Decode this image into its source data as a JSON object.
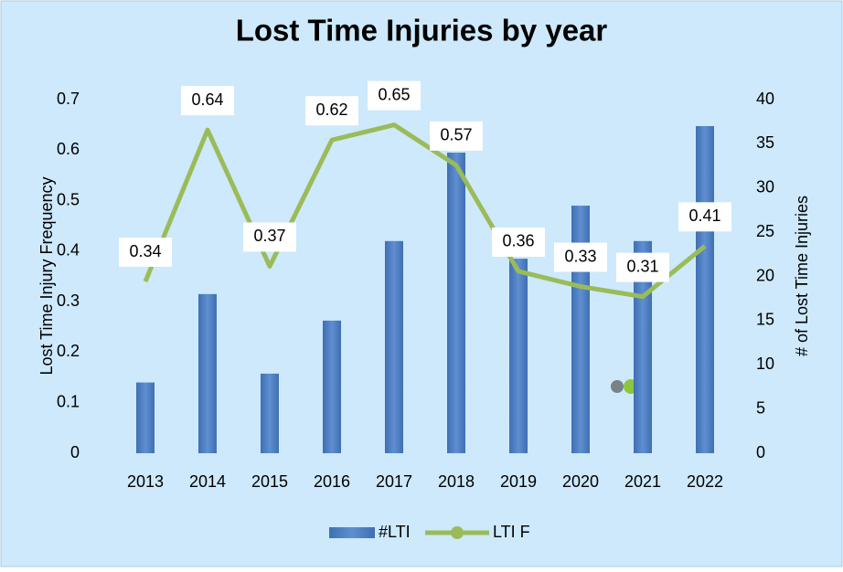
{
  "chart_data": {
    "type": "bar_line",
    "title": "Lost Time Injuries by year",
    "y_label": "Lost Time Injury Frequency",
    "y2_label": "# of Lost Time Injuries",
    "categories": [
      "2013",
      "2014",
      "2015",
      "2016",
      "2017",
      "2018",
      "2019",
      "2020",
      "2021",
      "2022"
    ],
    "ylim": [
      0,
      0.7
    ],
    "yticks": [
      0,
      0.1,
      0.2,
      0.3,
      0.4,
      0.5,
      0.6,
      0.7
    ],
    "y2lim": [
      0,
      40
    ],
    "y2ticks": [
      0,
      5,
      10,
      15,
      20,
      25,
      30,
      35,
      40
    ],
    "legend": "bottom",
    "series": [
      {
        "name": "#LTI",
        "type": "bar",
        "axis": "y2",
        "color": "#4f81c4",
        "values": [
          8,
          18,
          9,
          15,
          24,
          34,
          22,
          28,
          24,
          37
        ]
      },
      {
        "name": "LTI F",
        "type": "line",
        "axis": "y",
        "color": "#9bbb59",
        "values": [
          0.34,
          0.64,
          0.37,
          0.62,
          0.65,
          0.57,
          0.36,
          0.33,
          0.31,
          0.41
        ]
      }
    ]
  }
}
